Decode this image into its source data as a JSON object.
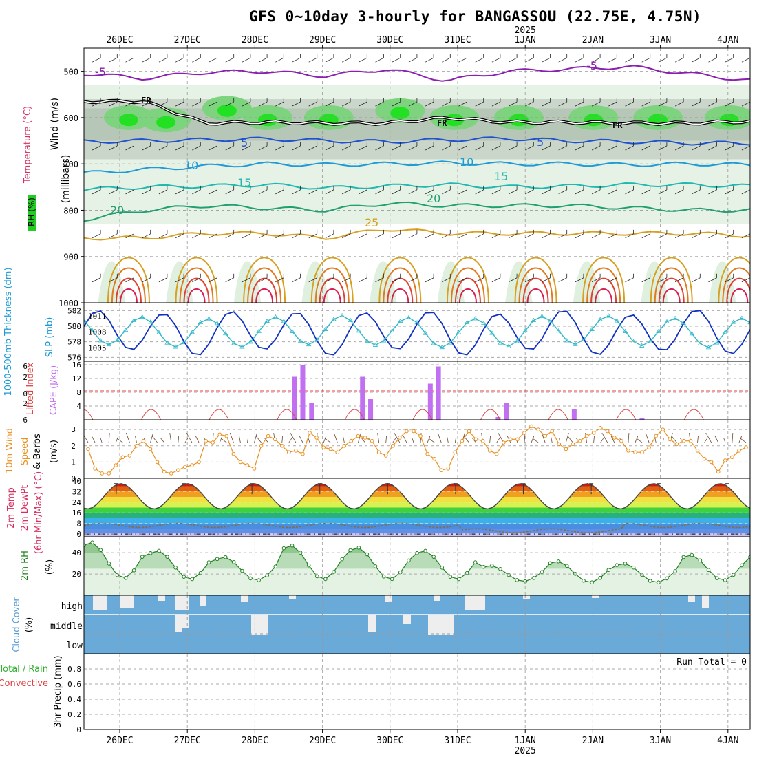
{
  "title": "GFS 0~10day 3-hourly for BANGASSOU (22.75E, 4.75N)",
  "year_label": "2025",
  "run_total_label": "Run Total = 0",
  "chart_data": [
    {
      "id": "upper-air",
      "type": "heatmap",
      "x_dates": [
        "26DEC",
        "27DEC",
        "28DEC",
        "29DEC",
        "30DEC",
        "31DEC",
        "1JAN",
        "2JAN",
        "3JAN",
        "4JAN"
      ],
      "y_ticks": [
        500,
        600,
        700,
        800,
        900,
        1000
      ],
      "ylabel_parts": {
        "wind": "Wind (m/s)",
        "temp": "Temperature (°C)",
        "rh": "RH (%)",
        "millibars": "(millibars)"
      },
      "freezing_label": "FR",
      "contour_labels": [
        {
          "text": "-5",
          "color": "#8a1fb0"
        },
        {
          "text": "5",
          "color": "#1e50d0"
        },
        {
          "text": "10",
          "color": "#1e9ad6"
        },
        {
          "text": "15",
          "color": "#20b8b0"
        },
        {
          "text": "20",
          "color": "#20a070"
        },
        {
          "text": "25",
          "color": "#d7a020"
        }
      ],
      "isotherms": [
        {
          "temp": -5,
          "color": "#8a1fb0",
          "p": [
            505,
            515,
            502,
            500,
            510,
            495,
            520,
            500,
            495,
            490,
            505,
            520
          ]
        },
        {
          "temp": 5,
          "color": "#1e50d0",
          "p": [
            652,
            650,
            648,
            646,
            650,
            652,
            648,
            645,
            650,
            652,
            655,
            655
          ]
        },
        {
          "temp": 10,
          "color": "#1e9ad6",
          "p": [
            720,
            712,
            705,
            700,
            702,
            700,
            698,
            700,
            700,
            702,
            700,
            702
          ]
        },
        {
          "temp": 15,
          "color": "#20b8b0",
          "p": [
            755,
            750,
            748,
            745,
            752,
            748,
            745,
            750,
            748,
            745,
            745,
            748
          ]
        },
        {
          "temp": 20,
          "color": "#20a070",
          "p": [
            820,
            800,
            790,
            795,
            800,
            785,
            790,
            790,
            790,
            795,
            800,
            800
          ]
        },
        {
          "temp": 25,
          "color": "#d7a020",
          "p": [
            860,
            860,
            850,
            850,
            860,
            840,
            850,
            850,
            850,
            850,
            850,
            855
          ]
        }
      ],
      "freezing_level": [
        565,
        565,
        612,
        610,
        612,
        612,
        600,
        610,
        610,
        612,
        612,
        608
      ]
    },
    {
      "id": "thickness-slp",
      "type": "line",
      "y_left_ticks": [
        576,
        578,
        580,
        582
      ],
      "y_right_ticks": [
        1005,
        1008,
        1011
      ],
      "labels": {
        "thickness": "1000-500mb Thickness (dm)",
        "slp": "SLP (mb)"
      },
      "thickness_range": [
        575.5,
        583
      ],
      "slp_range": [
        1002.5,
        1013.5
      ],
      "thickness_amp": 2.6,
      "thickness_mean": 579.2,
      "slp_amp": 2.7,
      "slp_mean": 1008.1
    },
    {
      "id": "cape-li",
      "type": "bar",
      "y_left_ticks": [
        6,
        2,
        0,
        -2,
        -6
      ],
      "y_right_ticks": [
        4,
        8,
        12,
        16
      ],
      "labels": {
        "li": "Lifted Index",
        "cape": "CAPE (J/kg)"
      },
      "cape_max": 17,
      "cape_bars": [
        {
          "day": 3.63,
          "v": 12.5
        },
        {
          "day": 3.75,
          "v": 16
        },
        {
          "day": 3.88,
          "v": 5
        },
        {
          "day": 4.63,
          "v": 12.5
        },
        {
          "day": 4.75,
          "v": 6
        },
        {
          "day": 5.63,
          "v": 10.5
        },
        {
          "day": 5.75,
          "v": 15.5
        },
        {
          "day": 6.63,
          "v": 0.8
        },
        {
          "day": 6.75,
          "v": 5
        },
        {
          "day": 7.75,
          "v": 3
        },
        {
          "day": 8.75,
          "v": 0.5
        }
      ]
    },
    {
      "id": "wind10m",
      "type": "line",
      "y_ticks": [
        1,
        2,
        3
      ],
      "ylim": [
        0,
        3.6
      ],
      "labels": {
        "wind": "10m Wind",
        "speed": "Speed",
        "barbs": "& Barbs",
        "units": "(m/s)"
      },
      "speeds": [
        1.8,
        0.6,
        0.3,
        0.3,
        0.8,
        1.3,
        1.4,
        2.0,
        2.3,
        1.8,
        1.0,
        0.4,
        0.3,
        0.5,
        0.7,
        0.8,
        1.0,
        2.3,
        2.2,
        2.7,
        2.6,
        1.5,
        1.0,
        0.8,
        0.6,
        2.0,
        2.6,
        2.4,
        2.0,
        1.6,
        1.7,
        1.5,
        2.8,
        2.5,
        1.9,
        1.8,
        1.6,
        2.0,
        2.3,
        2.6,
        2.5,
        2.3,
        1.6,
        1.4,
        2.0,
        2.5,
        2.9,
        2.9,
        2.6,
        1.5,
        1.2,
        0.5,
        0.6,
        1.6,
        2.3,
        2.9,
        2.4,
        2.3,
        1.7,
        1.5,
        2.2,
        2.4,
        2.4,
        2.8,
        3.2,
        3.0,
        2.6,
        2.9,
        2.1,
        1.8,
        2.1,
        2.3,
        2.6,
        2.8,
        3.1,
        2.9,
        2.5,
        2.3,
        1.7,
        1.6,
        1.6,
        1.9,
        2.6,
        3.0,
        2.4,
        2.1,
        2.3,
        2.3,
        1.7,
        1.2,
        1.0,
        0.4,
        1.1,
        1.3,
        1.7,
        1.9
      ]
    },
    {
      "id": "temp2m",
      "type": "area",
      "y_ticks": [
        0,
        8,
        16,
        24,
        32,
        40
      ],
      "ylim": [
        -2,
        42
      ],
      "labels": {
        "temp": "2m Temp",
        "dew": "2m DewPt",
        "minmax": "(6hr Min/Max) (°C)"
      },
      "t_min": 19,
      "t_max": 38,
      "dew_mean": 6.5
    },
    {
      "id": "rh2m",
      "type": "area",
      "y_ticks": [
        20,
        40
      ],
      "ylim": [
        0,
        55
      ],
      "labels": {
        "rh": "2m RH",
        "units": "(%)"
      },
      "rh_max": [
        50,
        42,
        36,
        47,
        45,
        42,
        28,
        32,
        30,
        38
      ],
      "rh_min": [
        16,
        15,
        14,
        15,
        15,
        15,
        13,
        12,
        12,
        14
      ]
    },
    {
      "id": "cloud",
      "type": "heatmap",
      "levels": [
        "high",
        "middle",
        "low"
      ],
      "labels": {
        "cloud": "Cloud Cover",
        "units": "(%)"
      }
    },
    {
      "id": "precip",
      "type": "bar",
      "y_ticks": [
        0,
        0.2,
        0.4,
        0.6,
        0.8
      ],
      "ylim": [
        0,
        1
      ],
      "labels": {
        "total": "Total / Rain",
        "convective": "Convective",
        "precip": "3hr Precip (mm)"
      },
      "values": []
    }
  ]
}
